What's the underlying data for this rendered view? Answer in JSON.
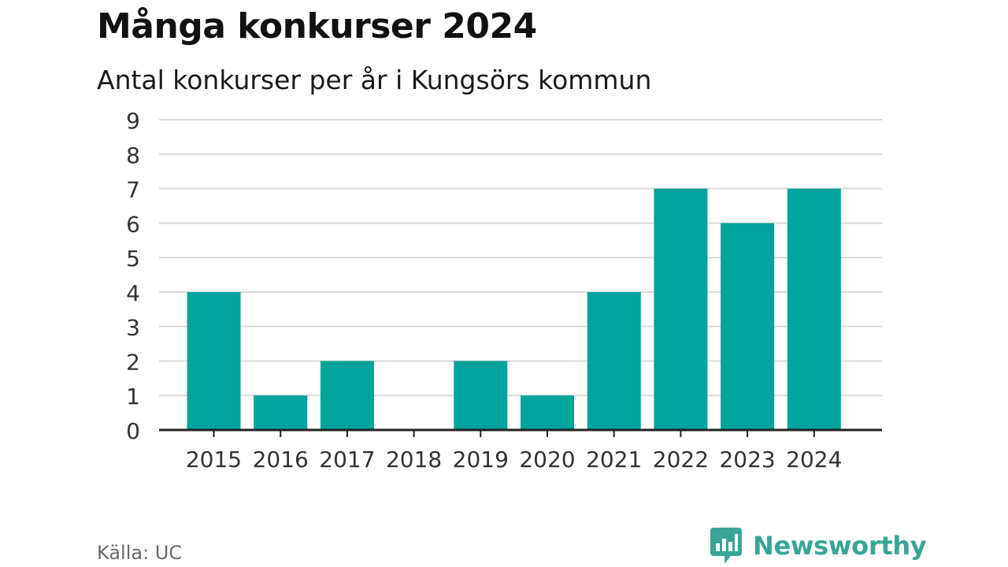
{
  "header": {
    "title": "Många konkurser 2024",
    "subtitle": "Antal konkurser per år i Kungsörs kommun"
  },
  "chart_data": {
    "type": "bar",
    "title": "Många konkurser 2024",
    "subtitle": "Antal konkurser per år i Kungsörs kommun",
    "xlabel": "",
    "ylabel": "",
    "categories": [
      "2015",
      "2016",
      "2017",
      "2018",
      "2019",
      "2020",
      "2021",
      "2022",
      "2023",
      "2024"
    ],
    "values": [
      4,
      1,
      2,
      0,
      2,
      1,
      4,
      7,
      6,
      7
    ],
    "ylim": [
      0,
      9
    ],
    "yticks": [
      "0",
      "1",
      "2",
      "3",
      "4",
      "5",
      "6",
      "7",
      "8",
      "9"
    ],
    "grid": true,
    "legend": "none",
    "bar_color": "#00a49a",
    "grid_color": "#d9d9d9",
    "axis_color": "#222222"
  },
  "footer": {
    "source": "Källa: UC",
    "brand": "Newsworthy",
    "brand_icon": "newsworthy-logo-icon",
    "brand_color": "#3aa597"
  }
}
